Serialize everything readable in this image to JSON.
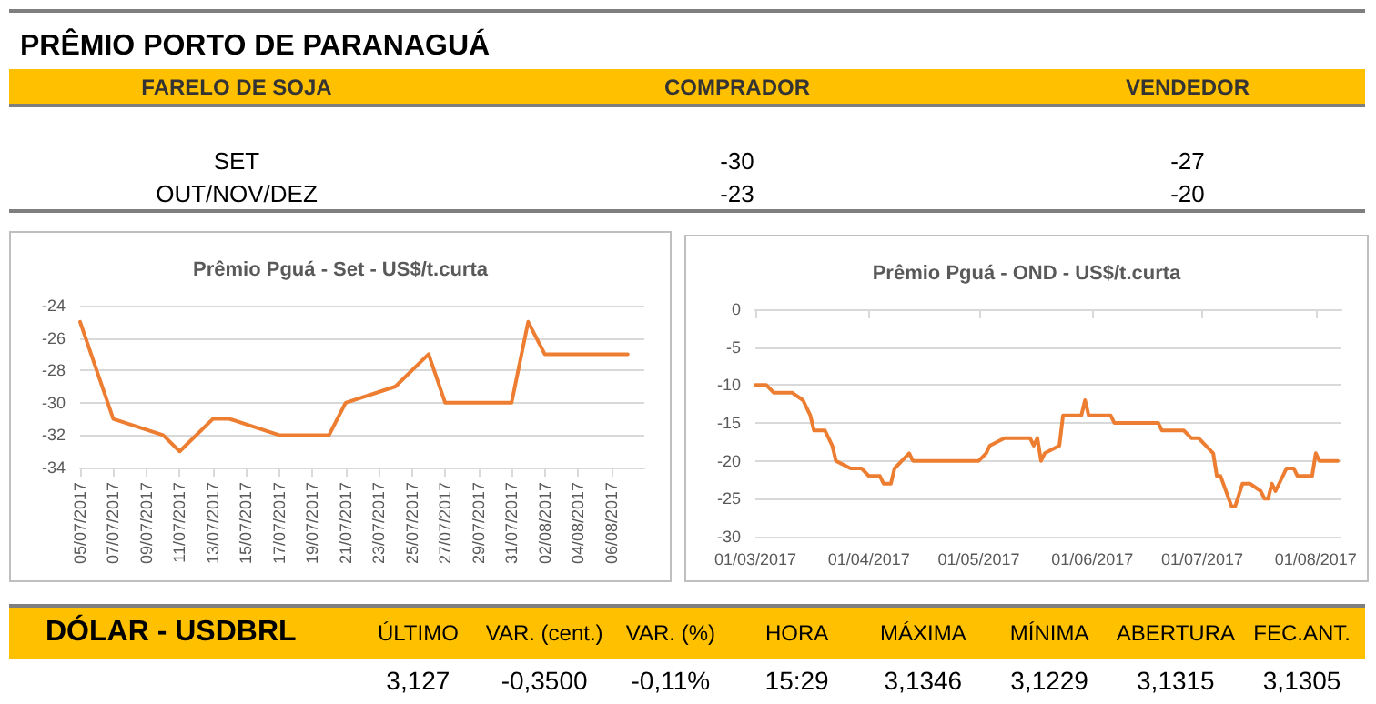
{
  "chart_data": [
    {
      "type": "other",
      "title": "PRÊMIO PORTO DE PARANAGUÁ",
      "categories": [
        "FARELO DE SOJA",
        "COMPRADOR",
        "VENDEDOR"
      ],
      "annotations": [
        "SET",
        "-30",
        "-27",
        "OUT/NOV/DEZ",
        "-23",
        "-20"
      ]
    },
    {
      "type": "line",
      "title": "Prêmio Pguá - Set - US$/t.curta",
      "x": [
        "2017-07-05",
        "2017-07-07",
        "2017-07-10",
        "2017-07-11",
        "2017-07-13",
        "2017-07-14",
        "2017-07-17",
        "2017-07-20",
        "2017-07-21",
        "2017-07-24",
        "2017-07-26",
        "2017-07-27",
        "2017-07-31",
        "2017-08-01",
        "2017-08-02",
        "2017-08-07"
      ],
      "series": [
        {
          "color": "#ed7d31",
          "values": [
            -25,
            -31,
            -32,
            -33,
            -31,
            -31,
            -32,
            -32,
            -30,
            -29,
            -27,
            -30,
            -30,
            -25,
            -27,
            -27
          ]
        }
      ],
      "xlim": [
        "2017-07-05",
        "2017-08-08"
      ],
      "xticks": [
        {
          "value": "2017-07-05",
          "label": "05/07/2017"
        },
        {
          "value": "2017-07-07",
          "label": "07/07/2017"
        },
        {
          "value": "2017-07-09",
          "label": "09/07/2017"
        },
        {
          "value": "2017-07-11",
          "label": "11/07/2017"
        },
        {
          "value": "2017-07-13",
          "label": "13/07/2017"
        },
        {
          "value": "2017-07-15",
          "label": "15/07/2017"
        },
        {
          "value": "2017-07-17",
          "label": "17/07/2017"
        },
        {
          "value": "2017-07-19",
          "label": "19/07/2017"
        },
        {
          "value": "2017-07-21",
          "label": "21/07/2017"
        },
        {
          "value": "2017-07-23",
          "label": "23/07/2017"
        },
        {
          "value": "2017-07-25",
          "label": "25/07/2017"
        },
        {
          "value": "2017-07-27",
          "label": "27/07/2017"
        },
        {
          "value": "2017-07-29",
          "label": "29/07/2017"
        },
        {
          "value": "2017-07-31",
          "label": "31/07/2017"
        },
        {
          "value": "2017-08-02",
          "label": "02/08/2017"
        },
        {
          "value": "2017-08-04",
          "label": "04/08/2017"
        },
        {
          "value": "2017-08-06",
          "label": "06/08/2017"
        }
      ],
      "ylim": [
        -34,
        -24
      ],
      "yticks": [
        -34,
        -32,
        -30,
        -28,
        -26,
        -24
      ],
      "grid": "y",
      "marker": "none",
      "line_style": "solid"
    },
    {
      "type": "line",
      "title": "Prêmio Pguá - OND - US$/t.curta",
      "x": [
        "2017-03-01",
        "2017-03-04",
        "2017-03-06",
        "2017-03-11",
        "2017-03-14",
        "2017-03-16",
        "2017-03-17",
        "2017-03-20",
        "2017-03-22",
        "2017-03-23",
        "2017-03-27",
        "2017-03-30",
        "2017-04-01",
        "2017-04-04",
        "2017-04-05",
        "2017-04-07",
        "2017-04-08",
        "2017-04-10",
        "2017-04-12",
        "2017-04-13",
        "2017-05-01",
        "2017-05-03",
        "2017-05-04",
        "2017-05-08",
        "2017-05-15",
        "2017-05-16",
        "2017-05-17",
        "2017-05-18",
        "2017-05-19",
        "2017-05-23",
        "2017-05-24",
        "2017-05-29",
        "2017-05-30",
        "2017-05-31",
        "2017-06-06",
        "2017-06-07",
        "2017-06-19",
        "2017-06-20",
        "2017-06-26",
        "2017-06-28",
        "2017-06-30",
        "2017-07-04",
        "2017-07-05",
        "2017-07-06",
        "2017-07-09",
        "2017-07-10",
        "2017-07-12",
        "2017-07-14",
        "2017-07-17",
        "2017-07-18",
        "2017-07-19",
        "2017-07-20",
        "2017-07-21",
        "2017-07-24",
        "2017-07-26",
        "2017-07-27",
        "2017-07-31",
        "2017-08-01",
        "2017-08-02",
        "2017-08-07"
      ],
      "series": [
        {
          "color": "#ed7d31",
          "values": [
            -10,
            -10,
            -11,
            -11,
            -12,
            -14,
            -16,
            -16,
            -18,
            -20,
            -21,
            -21,
            -22,
            -22,
            -23,
            -23,
            -21,
            -20,
            -19,
            -20,
            -20,
            -19,
            -18,
            -17,
            -17,
            -18,
            -17,
            -20,
            -19,
            -18,
            -14,
            -14,
            -12,
            -14,
            -14,
            -15,
            -15,
            -16,
            -16,
            -17,
            -17,
            -19,
            -22,
            -22,
            -26,
            -26,
            -23,
            -23,
            -24,
            -25,
            -25,
            -23,
            -24,
            -21,
            -21,
            -22,
            -22,
            -19,
            -20,
            -20
          ]
        }
      ],
      "xlim": [
        "2017-03-01",
        "2017-08-08"
      ],
      "xticks": [
        {
          "value": "2017-03-01",
          "label": "01/03/2017"
        },
        {
          "value": "2017-04-01",
          "label": "01/04/2017"
        },
        {
          "value": "2017-05-01",
          "label": "01/05/2017"
        },
        {
          "value": "2017-06-01",
          "label": "01/06/2017"
        },
        {
          "value": "2017-07-01",
          "label": "01/07/2017"
        },
        {
          "value": "2017-08-01",
          "label": "01/08/2017"
        }
      ],
      "ylim": [
        -30,
        0
      ],
      "yticks": [
        -30,
        -25,
        -20,
        -15,
        -10,
        -5,
        0
      ],
      "grid": "y",
      "marker": "none",
      "line_style": "solid"
    },
    {
      "type": "other",
      "title": "DÓLAR  - USDBRL",
      "categories": [
        "ÚLTIMO",
        "VAR. (cent.)",
        "VAR. (%)",
        "HORA",
        "MÁXIMA",
        "MÍNIMA",
        "ABERTURA",
        "FEC.ANT."
      ],
      "annotations": [
        "3,127",
        "-0,3500",
        "-0,11%",
        "15:29",
        "3,1346",
        "3,1229",
        "3,1315",
        "3,1305"
      ]
    }
  ]
}
